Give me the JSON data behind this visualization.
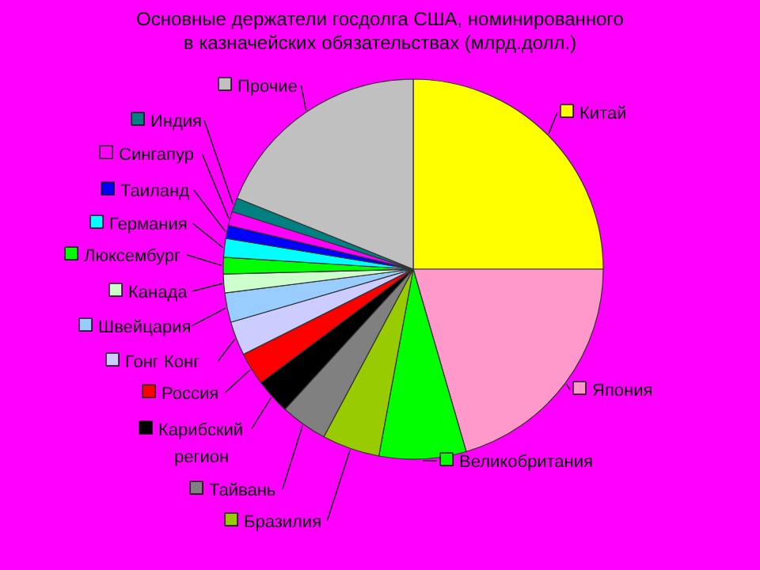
{
  "chart_data": {
    "type": "pie",
    "title": "Основные держатели госдолга США, номинированного\nв казначейских обязательствах (млрд.долл.)",
    "categories": [
      "Китай",
      "Япония",
      "Великобритания",
      "Бразилия",
      "Тайвань",
      "Карибский\nрегион",
      "Россия",
      "Гонг Конг",
      "Швейцария",
      "Канада",
      "Люксембург",
      "Германия",
      "Таиланд",
      "Сингапур",
      "Индия",
      "Прочие"
    ],
    "values": [
      25,
      20.5,
      7.4,
      4.9,
      4,
      3,
      2.8,
      2.9,
      2.5,
      1.6,
      1.4,
      1.6,
      1.1,
      1.2,
      1.2,
      18.9
    ],
    "legend": "left",
    "colors": [
      "#ffff00",
      "#ff99cc",
      "#00ff00",
      "#99cc00",
      "#808080",
      "#000000",
      "#ff0000",
      "#ccccff",
      "#99ccff",
      "#ccffcc",
      "#00ff00",
      "#00ffff",
      "#0000ff",
      "#ff00ff",
      "#008080",
      "#c0c0c0"
    ]
  }
}
